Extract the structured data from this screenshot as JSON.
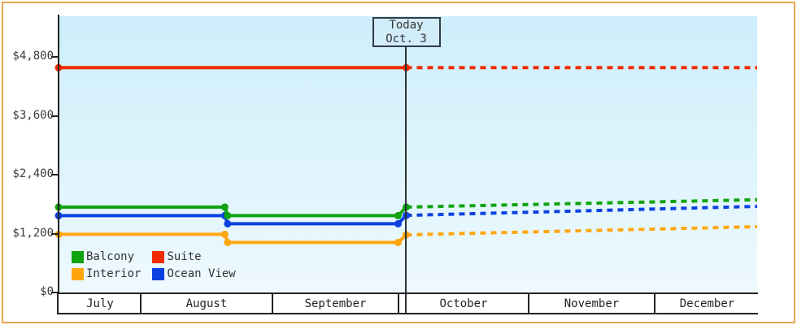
{
  "frame": {
    "border_color": "#eaa449"
  },
  "plot": {
    "bg_top": "#cdeefb",
    "bg_bottom": "#eef9fe",
    "axis_color": "#222222"
  },
  "y_axis": {
    "ticks": [
      {
        "label": "$4,800",
        "value": 4800
      },
      {
        "label": "$3,600",
        "value": 3600
      },
      {
        "label": "$2,400",
        "value": 2400
      },
      {
        "label": "$1,200",
        "value": 1200
      },
      {
        "label": "$0",
        "value": 0
      }
    ]
  },
  "x_axis": {
    "months": [
      {
        "label": "July",
        "start": 0.0,
        "end": 0.114
      },
      {
        "label": "August",
        "start": 0.114,
        "end": 0.3027
      },
      {
        "label": "September",
        "start": 0.3027,
        "end": 0.4831
      },
      {
        "label": "October",
        "start": 0.4831,
        "end": 0.6694
      },
      {
        "label": "November",
        "start": 0.6694,
        "end": 0.8498
      },
      {
        "label": "December",
        "start": 0.8498,
        "end": 1.0
      }
    ]
  },
  "today": {
    "line1": "Today",
    "line2": "Oct. 3",
    "x": 0.4977
  },
  "legend": [
    {
      "label": "Balcony",
      "color": "#0fa30f"
    },
    {
      "label": "Suite",
      "color": "#f22b00"
    },
    {
      "label": "Interior",
      "color": "#ffa60e"
    },
    {
      "label": "Ocean View",
      "color": "#0c41e1"
    }
  ],
  "chart_data": {
    "type": "line",
    "title": "",
    "xlabel": "",
    "ylabel": "",
    "categories": [
      "July",
      "August",
      "September",
      "October",
      "November",
      "December"
    ],
    "ylim": [
      0,
      5600
    ],
    "y_tick_values": [
      0,
      1200,
      2400,
      3600,
      4800
    ],
    "grid": false,
    "legend_position": "bottom-left inside plot",
    "today_marker": {
      "label": "Today Oct. 3",
      "x_fraction": 0.4977
    },
    "x_unit": "fraction of July-December timeline (today = Oct 3 at 0.4977)",
    "series": [
      {
        "name": "Interior",
        "color": "#ffa60e",
        "solid": [
          [
            0,
            1185
          ],
          [
            0.238,
            1185
          ],
          [
            0.242,
            1020
          ],
          [
            0.486,
            1020
          ],
          [
            0.4977,
            1175
          ]
        ],
        "forecast": [
          [
            0.4977,
            1175
          ],
          [
            1,
            1340
          ]
        ]
      },
      {
        "name": "Ocean View",
        "color": "#0c41e1",
        "solid": [
          [
            0,
            1565
          ],
          [
            0.238,
            1565
          ],
          [
            0.242,
            1400
          ],
          [
            0.486,
            1400
          ],
          [
            0.4977,
            1570
          ]
        ],
        "forecast": [
          [
            0.4977,
            1570
          ],
          [
            1,
            1755
          ]
        ]
      },
      {
        "name": "Balcony",
        "color": "#0fa30f",
        "solid": [
          [
            0,
            1740
          ],
          [
            0.238,
            1740
          ],
          [
            0.242,
            1565
          ],
          [
            0.486,
            1565
          ],
          [
            0.4977,
            1740
          ]
        ],
        "forecast": [
          [
            0.4977,
            1740
          ],
          [
            1,
            1890
          ]
        ]
      },
      {
        "name": "Suite",
        "color": "#f22b00",
        "solid": [
          [
            0,
            4580
          ],
          [
            0.4977,
            4580
          ]
        ],
        "forecast": [
          [
            0.4977,
            4580
          ],
          [
            1,
            4580
          ]
        ]
      }
    ]
  }
}
